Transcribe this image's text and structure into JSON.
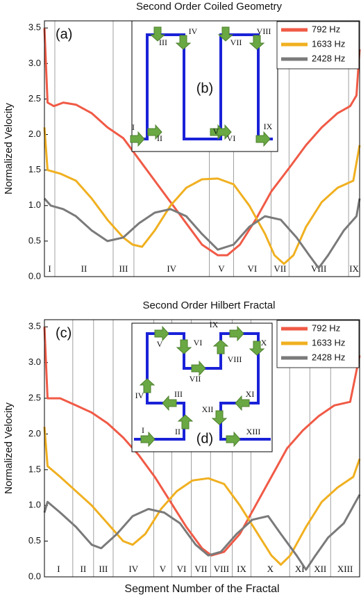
{
  "chart_data": [
    {
      "type": "line",
      "title": "Second Order Coiled Geometry",
      "y_label": "Normalized Velocity",
      "annotation": "(a)",
      "inset_label": "(b)",
      "categories": [
        "I",
        "II",
        "III",
        "IV",
        "V",
        "VI",
        "VII",
        "VIII",
        "IX"
      ],
      "segment_boundaries": [
        0.033,
        0.218,
        0.284,
        0.523,
        0.6,
        0.719,
        0.776,
        0.965
      ],
      "xlim": [
        0,
        1
      ],
      "ylim": [
        0,
        3.6
      ],
      "yticks": [
        {
          "value": 0,
          "label": "0.0"
        },
        0.5,
        {
          "value": 1,
          "label": "1.0"
        },
        1.5,
        {
          "value": 2,
          "label": "2.0"
        },
        2.5,
        {
          "value": 3,
          "label": "3.0"
        },
        3.5
      ],
      "legend": "upper right",
      "series": [
        {
          "name": "792 Hz",
          "color": "#f05a46",
          "x": [
            0,
            0.01,
            0.03,
            0.06,
            0.1,
            0.15,
            0.2,
            0.25,
            0.3,
            0.35,
            0.4,
            0.45,
            0.5,
            0.55,
            0.58,
            0.62,
            0.67,
            0.72,
            0.78,
            0.83,
            0.88,
            0.93,
            0.97,
            0.99,
            1.0
          ],
          "values": [
            3.5,
            2.45,
            2.4,
            2.45,
            2.42,
            2.3,
            2.1,
            1.95,
            1.65,
            1.35,
            1.05,
            0.75,
            0.45,
            0.3,
            0.3,
            0.45,
            0.8,
            1.2,
            1.55,
            1.85,
            2.1,
            2.3,
            2.4,
            2.55,
            3.2
          ]
        },
        {
          "name": "1633 Hz",
          "color": "#f0b020",
          "x": [
            0,
            0.01,
            0.05,
            0.1,
            0.15,
            0.2,
            0.25,
            0.28,
            0.31,
            0.35,
            0.4,
            0.45,
            0.5,
            0.55,
            0.6,
            0.65,
            0.7,
            0.73,
            0.76,
            0.79,
            0.83,
            0.88,
            0.93,
            0.98,
            1.0
          ],
          "values": [
            2.1,
            1.5,
            1.45,
            1.35,
            1.1,
            0.8,
            0.55,
            0.45,
            0.42,
            0.65,
            1.0,
            1.25,
            1.37,
            1.38,
            1.3,
            1.0,
            0.6,
            0.3,
            0.18,
            0.3,
            0.7,
            1.05,
            1.25,
            1.35,
            1.85
          ]
        },
        {
          "name": "2428 Hz",
          "color": "#7a7a7a",
          "x": [
            0,
            0.02,
            0.06,
            0.1,
            0.15,
            0.2,
            0.25,
            0.3,
            0.35,
            0.4,
            0.45,
            0.5,
            0.55,
            0.6,
            0.65,
            0.7,
            0.75,
            0.8,
            0.84,
            0.87,
            0.9,
            0.95,
            0.99,
            1.0
          ],
          "values": [
            1.1,
            1.0,
            0.95,
            0.85,
            0.65,
            0.5,
            0.55,
            0.75,
            0.9,
            0.95,
            0.85,
            0.6,
            0.38,
            0.45,
            0.7,
            0.85,
            0.8,
            0.55,
            0.3,
            0.12,
            0.3,
            0.65,
            0.85,
            1.1
          ]
        }
      ]
    },
    {
      "type": "line",
      "title": "Second Order Hilbert Fractal",
      "y_label": "Normalized Velocity",
      "x_label": "Segment Number of the Fractal",
      "annotation": "(c)",
      "inset_label": "(d)",
      "categories": [
        "I",
        "II",
        "III",
        "IV",
        "V",
        "VI",
        "VII",
        "VIII",
        "IX",
        "X",
        "XI",
        "XII",
        "XIII"
      ],
      "segment_boundaries": [
        0.09,
        0.156,
        0.218,
        0.347,
        0.404,
        0.466,
        0.527,
        0.596,
        0.655,
        0.778,
        0.842,
        0.908
      ],
      "xlim": [
        0,
        1
      ],
      "ylim": [
        0,
        3.6
      ],
      "yticks": [
        {
          "value": 0,
          "label": "0.0"
        },
        0.5,
        {
          "value": 1,
          "label": "1.0"
        },
        1.5,
        {
          "value": 2,
          "label": "2.0"
        },
        2.5,
        {
          "value": 3,
          "label": "3.0"
        },
        3.5
      ],
      "legend": "upper right",
      "series": [
        {
          "name": "792 Hz",
          "color": "#f05a46",
          "x": [
            0,
            0.01,
            0.05,
            0.1,
            0.15,
            0.2,
            0.25,
            0.3,
            0.35,
            0.4,
            0.45,
            0.5,
            0.53,
            0.57,
            0.62,
            0.67,
            0.72,
            0.77,
            0.82,
            0.87,
            0.92,
            0.97,
            1.0
          ],
          "values": [
            3.5,
            2.5,
            2.5,
            2.4,
            2.3,
            2.15,
            1.95,
            1.7,
            1.4,
            1.05,
            0.7,
            0.4,
            0.3,
            0.35,
            0.6,
            1.0,
            1.4,
            1.8,
            2.05,
            2.25,
            2.4,
            2.45,
            3.1
          ]
        },
        {
          "name": "1633 Hz",
          "color": "#f0b020",
          "x": [
            0,
            0.01,
            0.05,
            0.1,
            0.15,
            0.2,
            0.25,
            0.28,
            0.32,
            0.37,
            0.42,
            0.47,
            0.52,
            0.57,
            0.62,
            0.67,
            0.72,
            0.75,
            0.78,
            0.83,
            0.88,
            0.93,
            0.98,
            1.0
          ],
          "values": [
            2.1,
            1.55,
            1.4,
            1.2,
            1.0,
            0.75,
            0.5,
            0.45,
            0.6,
            0.95,
            1.2,
            1.35,
            1.38,
            1.3,
            1.0,
            0.65,
            0.3,
            0.17,
            0.3,
            0.7,
            1.05,
            1.25,
            1.4,
            1.65
          ]
        },
        {
          "name": "2428 Hz",
          "color": "#7a7a7a",
          "x": [
            0,
            0.01,
            0.05,
            0.1,
            0.15,
            0.18,
            0.23,
            0.28,
            0.33,
            0.38,
            0.43,
            0.48,
            0.52,
            0.56,
            0.61,
            0.66,
            0.71,
            0.75,
            0.8,
            0.83,
            0.86,
            0.9,
            0.95,
            1.0
          ],
          "values": [
            0.9,
            1.05,
            0.9,
            0.7,
            0.45,
            0.4,
            0.6,
            0.85,
            0.95,
            0.9,
            0.75,
            0.45,
            0.3,
            0.35,
            0.6,
            0.8,
            0.85,
            0.6,
            0.3,
            0.1,
            0.3,
            0.55,
            0.75,
            1.15
          ]
        }
      ]
    }
  ]
}
